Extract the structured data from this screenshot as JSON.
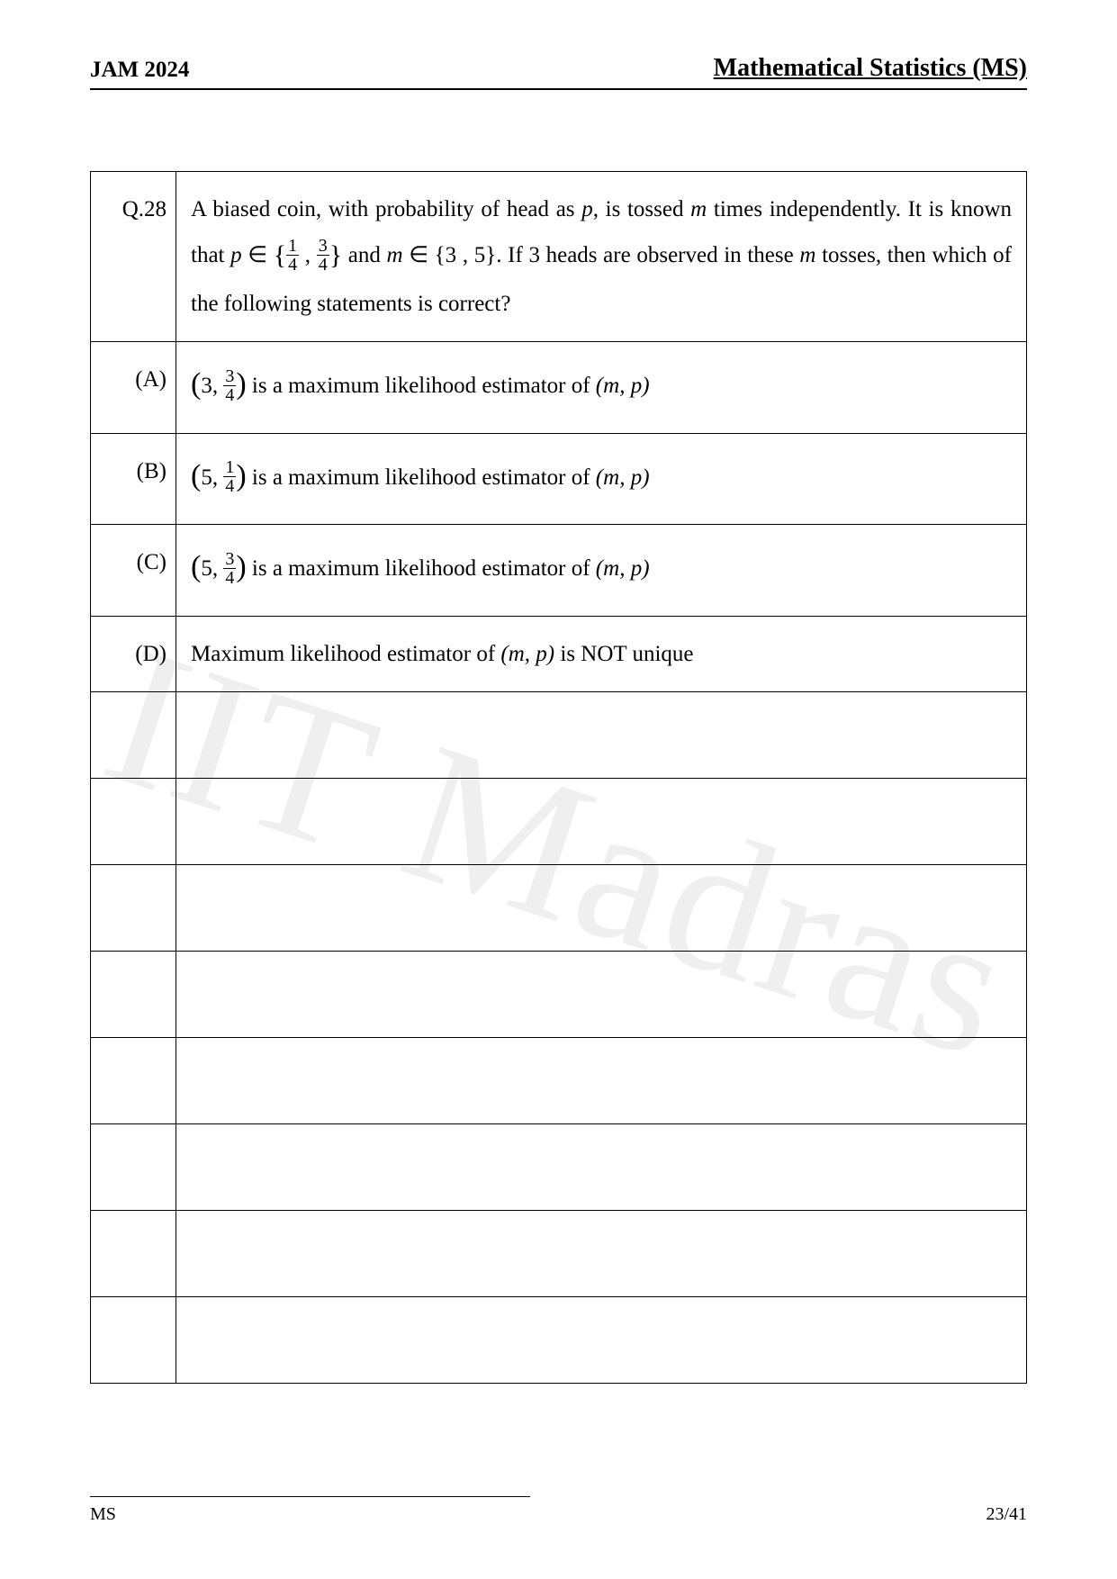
{
  "header": {
    "left": "JAM 2024",
    "right": "Mathematical Statistics (MS)"
  },
  "watermark": "IIT Madras",
  "question": {
    "number": "Q.28",
    "stem_pre": "A biased coin, with probability of head as ",
    "stem_p": "p",
    "stem_mid1": ", is tossed ",
    "stem_m": "m",
    "stem_mid2": " times independently. It is known that ",
    "set_p_in": "p",
    "set_open": " ∈ ",
    "frac1_num": "1",
    "frac1_den": "4",
    "frac2_num": "3",
    "frac2_den": "4",
    "set_and": " and ",
    "set_m_in": "m",
    "set_m": " ∈ {3 , 5}. If 3 heads are observed in these ",
    "stem_m2": "m",
    "stem_end": " tosses, then which of the following statements is correct?"
  },
  "options": {
    "A": {
      "label": "(A)",
      "pair_first": "3",
      "pair_num": "3",
      "pair_den": "4",
      "tail": " is a maximum likelihood estimator of ",
      "mp": "(m, p)"
    },
    "B": {
      "label": "(B)",
      "pair_first": "5",
      "pair_num": "1",
      "pair_den": "4",
      "tail": " is a maximum likelihood estimator of ",
      "mp": "(m, p)"
    },
    "C": {
      "label": "(C)",
      "pair_first": "5",
      "pair_num": "3",
      "pair_den": "4",
      "tail": " is a maximum likelihood estimator of ",
      "mp": "(m, p)"
    },
    "D": {
      "label": "(D)",
      "text_pre": "Maximum likelihood estimator of ",
      "mp": "(m, p)",
      "text_post": " is NOT unique"
    }
  },
  "footer": {
    "left": "MS",
    "right": "23/41"
  }
}
